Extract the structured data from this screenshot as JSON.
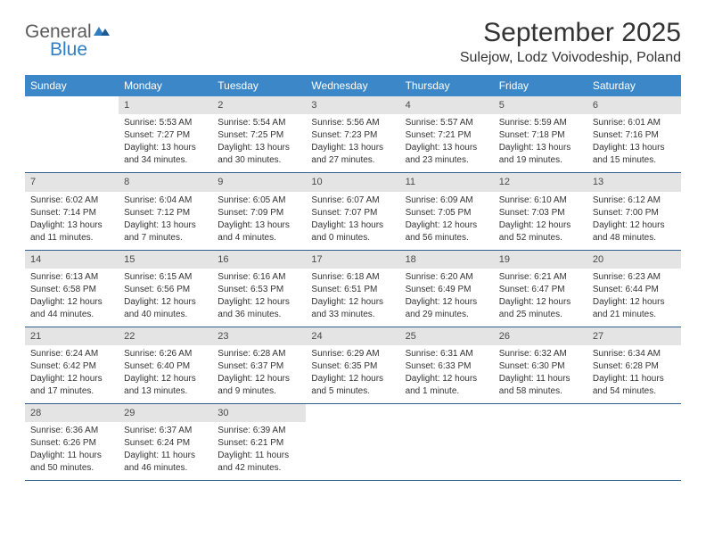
{
  "logo": {
    "general": "General",
    "blue": "Blue"
  },
  "title": "September 2025",
  "location": "Sulejow, Lodz Voivodeship, Poland",
  "colors": {
    "header_bg": "#3b87c8",
    "header_text": "#ffffff",
    "daynum_bg": "#e4e4e4",
    "rule": "#2f5f8f",
    "logo_blue": "#2f7fc2",
    "logo_gray": "#5a5a5a"
  },
  "day_names": [
    "Sunday",
    "Monday",
    "Tuesday",
    "Wednesday",
    "Thursday",
    "Friday",
    "Saturday"
  ],
  "weeks": [
    [
      {
        "empty": true
      },
      {
        "n": "1",
        "sunrise": "Sunrise: 5:53 AM",
        "sunset": "Sunset: 7:27 PM",
        "daylight1": "Daylight: 13 hours",
        "daylight2": "and 34 minutes."
      },
      {
        "n": "2",
        "sunrise": "Sunrise: 5:54 AM",
        "sunset": "Sunset: 7:25 PM",
        "daylight1": "Daylight: 13 hours",
        "daylight2": "and 30 minutes."
      },
      {
        "n": "3",
        "sunrise": "Sunrise: 5:56 AM",
        "sunset": "Sunset: 7:23 PM",
        "daylight1": "Daylight: 13 hours",
        "daylight2": "and 27 minutes."
      },
      {
        "n": "4",
        "sunrise": "Sunrise: 5:57 AM",
        "sunset": "Sunset: 7:21 PM",
        "daylight1": "Daylight: 13 hours",
        "daylight2": "and 23 minutes."
      },
      {
        "n": "5",
        "sunrise": "Sunrise: 5:59 AM",
        "sunset": "Sunset: 7:18 PM",
        "daylight1": "Daylight: 13 hours",
        "daylight2": "and 19 minutes."
      },
      {
        "n": "6",
        "sunrise": "Sunrise: 6:01 AM",
        "sunset": "Sunset: 7:16 PM",
        "daylight1": "Daylight: 13 hours",
        "daylight2": "and 15 minutes."
      }
    ],
    [
      {
        "n": "7",
        "sunrise": "Sunrise: 6:02 AM",
        "sunset": "Sunset: 7:14 PM",
        "daylight1": "Daylight: 13 hours",
        "daylight2": "and 11 minutes."
      },
      {
        "n": "8",
        "sunrise": "Sunrise: 6:04 AM",
        "sunset": "Sunset: 7:12 PM",
        "daylight1": "Daylight: 13 hours",
        "daylight2": "and 7 minutes."
      },
      {
        "n": "9",
        "sunrise": "Sunrise: 6:05 AM",
        "sunset": "Sunset: 7:09 PM",
        "daylight1": "Daylight: 13 hours",
        "daylight2": "and 4 minutes."
      },
      {
        "n": "10",
        "sunrise": "Sunrise: 6:07 AM",
        "sunset": "Sunset: 7:07 PM",
        "daylight1": "Daylight: 13 hours",
        "daylight2": "and 0 minutes."
      },
      {
        "n": "11",
        "sunrise": "Sunrise: 6:09 AM",
        "sunset": "Sunset: 7:05 PM",
        "daylight1": "Daylight: 12 hours",
        "daylight2": "and 56 minutes."
      },
      {
        "n": "12",
        "sunrise": "Sunrise: 6:10 AM",
        "sunset": "Sunset: 7:03 PM",
        "daylight1": "Daylight: 12 hours",
        "daylight2": "and 52 minutes."
      },
      {
        "n": "13",
        "sunrise": "Sunrise: 6:12 AM",
        "sunset": "Sunset: 7:00 PM",
        "daylight1": "Daylight: 12 hours",
        "daylight2": "and 48 minutes."
      }
    ],
    [
      {
        "n": "14",
        "sunrise": "Sunrise: 6:13 AM",
        "sunset": "Sunset: 6:58 PM",
        "daylight1": "Daylight: 12 hours",
        "daylight2": "and 44 minutes."
      },
      {
        "n": "15",
        "sunrise": "Sunrise: 6:15 AM",
        "sunset": "Sunset: 6:56 PM",
        "daylight1": "Daylight: 12 hours",
        "daylight2": "and 40 minutes."
      },
      {
        "n": "16",
        "sunrise": "Sunrise: 6:16 AM",
        "sunset": "Sunset: 6:53 PM",
        "daylight1": "Daylight: 12 hours",
        "daylight2": "and 36 minutes."
      },
      {
        "n": "17",
        "sunrise": "Sunrise: 6:18 AM",
        "sunset": "Sunset: 6:51 PM",
        "daylight1": "Daylight: 12 hours",
        "daylight2": "and 33 minutes."
      },
      {
        "n": "18",
        "sunrise": "Sunrise: 6:20 AM",
        "sunset": "Sunset: 6:49 PM",
        "daylight1": "Daylight: 12 hours",
        "daylight2": "and 29 minutes."
      },
      {
        "n": "19",
        "sunrise": "Sunrise: 6:21 AM",
        "sunset": "Sunset: 6:47 PM",
        "daylight1": "Daylight: 12 hours",
        "daylight2": "and 25 minutes."
      },
      {
        "n": "20",
        "sunrise": "Sunrise: 6:23 AM",
        "sunset": "Sunset: 6:44 PM",
        "daylight1": "Daylight: 12 hours",
        "daylight2": "and 21 minutes."
      }
    ],
    [
      {
        "n": "21",
        "sunrise": "Sunrise: 6:24 AM",
        "sunset": "Sunset: 6:42 PM",
        "daylight1": "Daylight: 12 hours",
        "daylight2": "and 17 minutes."
      },
      {
        "n": "22",
        "sunrise": "Sunrise: 6:26 AM",
        "sunset": "Sunset: 6:40 PM",
        "daylight1": "Daylight: 12 hours",
        "daylight2": "and 13 minutes."
      },
      {
        "n": "23",
        "sunrise": "Sunrise: 6:28 AM",
        "sunset": "Sunset: 6:37 PM",
        "daylight1": "Daylight: 12 hours",
        "daylight2": "and 9 minutes."
      },
      {
        "n": "24",
        "sunrise": "Sunrise: 6:29 AM",
        "sunset": "Sunset: 6:35 PM",
        "daylight1": "Daylight: 12 hours",
        "daylight2": "and 5 minutes."
      },
      {
        "n": "25",
        "sunrise": "Sunrise: 6:31 AM",
        "sunset": "Sunset: 6:33 PM",
        "daylight1": "Daylight: 12 hours",
        "daylight2": "and 1 minute."
      },
      {
        "n": "26",
        "sunrise": "Sunrise: 6:32 AM",
        "sunset": "Sunset: 6:30 PM",
        "daylight1": "Daylight: 11 hours",
        "daylight2": "and 58 minutes."
      },
      {
        "n": "27",
        "sunrise": "Sunrise: 6:34 AM",
        "sunset": "Sunset: 6:28 PM",
        "daylight1": "Daylight: 11 hours",
        "daylight2": "and 54 minutes."
      }
    ],
    [
      {
        "n": "28",
        "sunrise": "Sunrise: 6:36 AM",
        "sunset": "Sunset: 6:26 PM",
        "daylight1": "Daylight: 11 hours",
        "daylight2": "and 50 minutes."
      },
      {
        "n": "29",
        "sunrise": "Sunrise: 6:37 AM",
        "sunset": "Sunset: 6:24 PM",
        "daylight1": "Daylight: 11 hours",
        "daylight2": "and 46 minutes."
      },
      {
        "n": "30",
        "sunrise": "Sunrise: 6:39 AM",
        "sunset": "Sunset: 6:21 PM",
        "daylight1": "Daylight: 11 hours",
        "daylight2": "and 42 minutes."
      },
      {
        "empty": true
      },
      {
        "empty": true
      },
      {
        "empty": true
      },
      {
        "empty": true
      }
    ]
  ]
}
